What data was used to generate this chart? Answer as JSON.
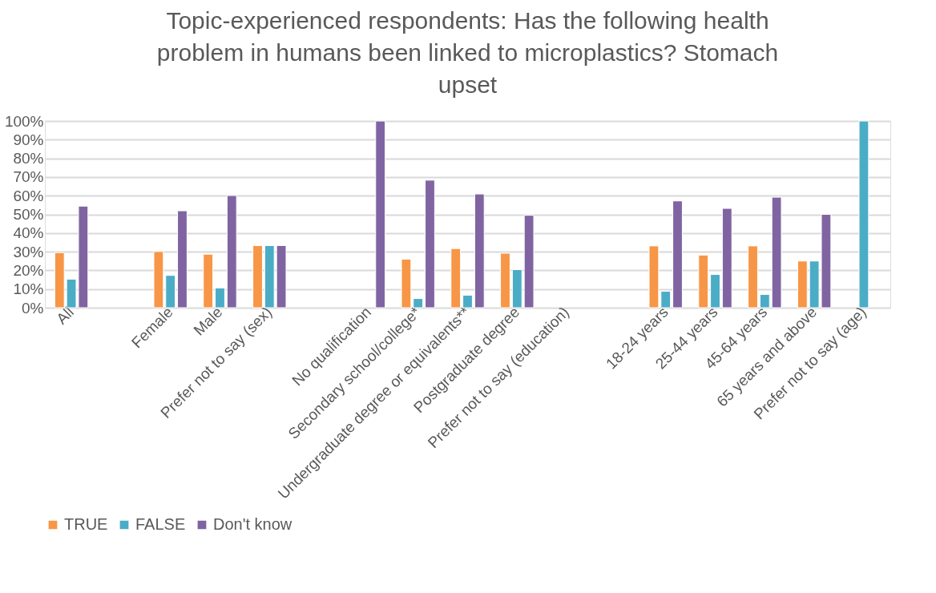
{
  "chart_data": {
    "type": "bar",
    "title": "Topic-experienced respondents: Has the following health problem in humans been linked to microplastics? Stomach upset",
    "categories": [
      "All",
      null,
      "Female",
      "Male",
      "Prefer not to say (sex)",
      null,
      "No qualification",
      "Secondary school/college*",
      "Undergraduate degree or equivalents**",
      "Postgraduate degree",
      "Prefer not to say (education)",
      null,
      "18-24 years",
      "25-44 years",
      "45-64 years",
      "65 years and above",
      "Prefer not to say (age)"
    ],
    "series": [
      {
        "name": "TRUE",
        "color": "#f79646",
        "values": [
          29.5,
          null,
          30.1,
          28.7,
          33.3,
          null,
          null,
          26.0,
          31.7,
          29.2,
          null,
          null,
          33.1,
          28.2,
          33.1,
          25.0,
          null
        ]
      },
      {
        "name": "FALSE",
        "color": "#4bacc6",
        "values": [
          15.3,
          null,
          17.3,
          10.6,
          33.3,
          null,
          null,
          4.9,
          6.7,
          20.4,
          null,
          null,
          8.8,
          17.8,
          7.1,
          25.0,
          100
        ]
      },
      {
        "name": "Don't know",
        "color": "#8064a2",
        "values": [
          54.4,
          null,
          51.9,
          60.1,
          33.3,
          null,
          100,
          68.3,
          60.9,
          49.5,
          null,
          null,
          57.2,
          53.2,
          59.2,
          50.0,
          null
        ]
      }
    ],
    "ylim": [
      0,
      100
    ],
    "yticks": [
      {
        "value": 0,
        "label": "0%"
      },
      {
        "value": 10,
        "label": "10%"
      },
      {
        "value": 20,
        "label": "20%"
      },
      {
        "value": 30,
        "label": "30%"
      },
      {
        "value": 40,
        "label": "40%"
      },
      {
        "value": 50,
        "label": "50%"
      },
      {
        "value": 60,
        "label": "60%"
      },
      {
        "value": 70,
        "label": "70%"
      },
      {
        "value": 80,
        "label": "80%"
      },
      {
        "value": 90,
        "label": "90%"
      },
      {
        "value": 100,
        "label": "100%"
      }
    ],
    "grid": "y",
    "legend": "bottom"
  }
}
